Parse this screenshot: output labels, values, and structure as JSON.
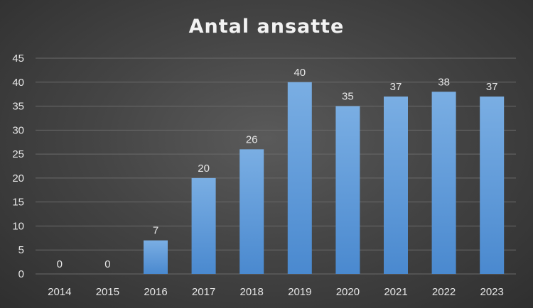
{
  "chart_data": {
    "type": "bar",
    "title": "Antal ansatte",
    "categories": [
      "2014",
      "2015",
      "2016",
      "2017",
      "2018",
      "2019",
      "2020",
      "2021",
      "2022",
      "2023"
    ],
    "values": [
      0,
      0,
      7,
      20,
      26,
      40,
      35,
      37,
      38,
      37
    ],
    "ylim": [
      0,
      45
    ],
    "yticks": [
      "0",
      "5",
      "10",
      "15",
      "20",
      "25",
      "30",
      "35",
      "40",
      "45"
    ],
    "grid": true,
    "data_labels": true,
    "legend": "none",
    "colors": {
      "bar_top": "#7aaee3",
      "bar_bottom": "#4a89cf",
      "background": "#404040",
      "text": "#e6e6e6"
    }
  }
}
